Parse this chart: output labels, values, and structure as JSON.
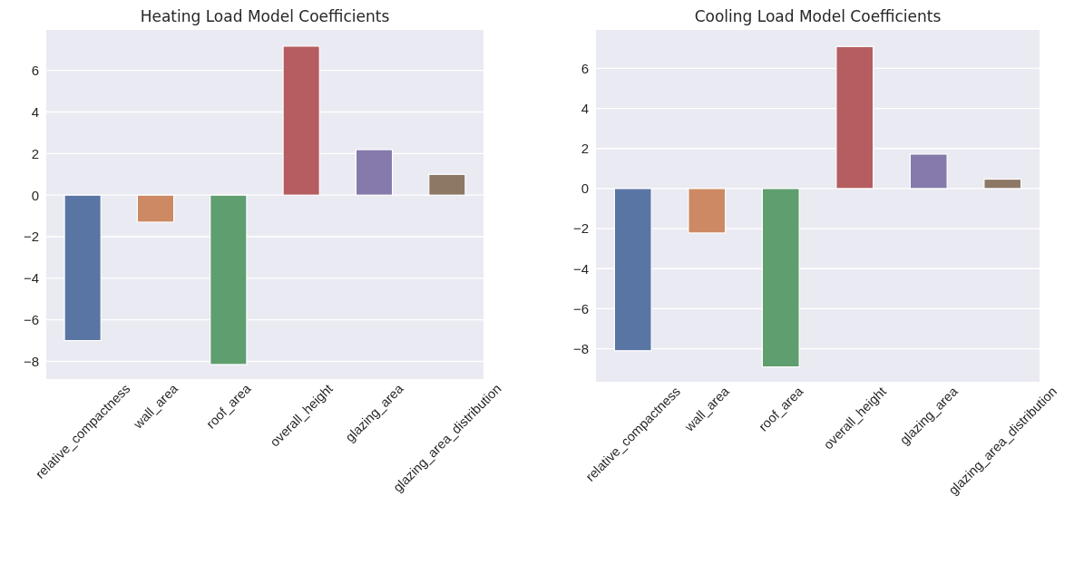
{
  "chart_data": [
    {
      "type": "bar",
      "title": "Heating Load Model Coefficients",
      "categories": [
        "relative_compactness",
        "wall_area",
        "roof_area",
        "overall_height",
        "glazing_area",
        "glazing_area_distribution"
      ],
      "values": [
        -7.0,
        -1.3,
        -8.15,
        7.17,
        2.19,
        1.0
      ],
      "colors": [
        "#5975a4",
        "#cc8963",
        "#5f9e6e",
        "#b55d60",
        "#857aab",
        "#8d7866"
      ],
      "ylim": [
        -8.85,
        7.95
      ],
      "yticks": [
        -8,
        -6,
        -4,
        -2,
        0,
        2,
        4,
        6
      ],
      "grid": "y"
    },
    {
      "type": "bar",
      "title": "Cooling Load Model Coefficients",
      "categories": [
        "relative_compactness",
        "wall_area",
        "roof_area",
        "overall_height",
        "glazing_area",
        "glazing_area_distribution"
      ],
      "values": [
        -8.1,
        -2.22,
        -8.91,
        7.09,
        1.72,
        0.47
      ],
      "colors": [
        "#5975a4",
        "#cc8963",
        "#5f9e6e",
        "#b55d60",
        "#857aab",
        "#8d7866"
      ],
      "ylim": [
        -9.65,
        7.92
      ],
      "yticks": [
        -8,
        -6,
        -4,
        -2,
        0,
        2,
        4,
        6
      ],
      "grid": "y"
    }
  ]
}
